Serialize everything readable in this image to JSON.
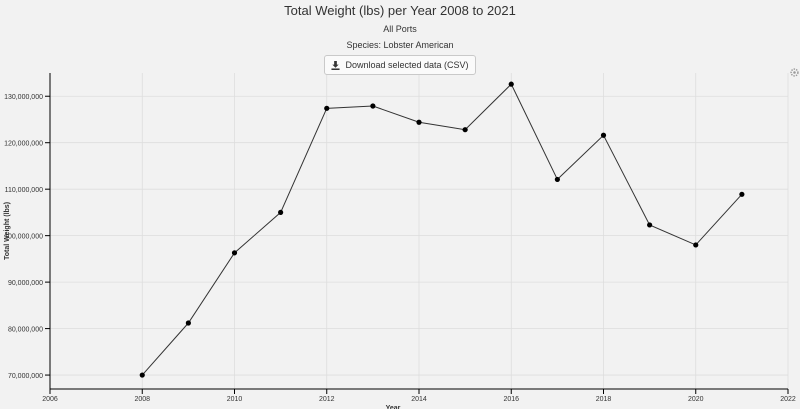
{
  "header": {
    "title": "Total Weight (lbs) per Year 2008 to 2021",
    "ports": "All Ports",
    "species": "Species: Lobster American",
    "download_label": "Download selected data (CSV)"
  },
  "icons": {
    "download": "download-icon",
    "corner": "gear-icon"
  },
  "colors": {
    "background": "#f2f2f2",
    "grid": "#dddddd",
    "line": "#333333",
    "point": "#000000"
  },
  "chart_data": {
    "type": "line",
    "title": "Total Weight (lbs) per Year 2008 to 2021",
    "xlabel": "Year",
    "ylabel": "Total Weight (lbs)",
    "xlim": [
      2006,
      2022
    ],
    "ylim": [
      67000000,
      135000000
    ],
    "xticks": [
      2006,
      2008,
      2010,
      2012,
      2014,
      2016,
      2018,
      2020,
      2022
    ],
    "yticks": [
      70000000,
      80000000,
      90000000,
      100000000,
      110000000,
      120000000,
      130000000
    ],
    "xtick_labels": [
      "2006",
      "2008",
      "2010",
      "2012",
      "2014",
      "2016",
      "2018",
      "2020",
      "2022"
    ],
    "ytick_labels": [
      "70,000,000",
      "80,000,000",
      "90,000,000",
      "100,000,000",
      "110,000,000",
      "120,000,000",
      "130,000,000"
    ],
    "grid": true,
    "series": [
      {
        "x": [
          2008,
          2009,
          2010,
          2011,
          2012,
          2013,
          2014,
          2015,
          2016,
          2017,
          2018,
          2019,
          2020,
          2021
        ],
        "values": [
          70000000,
          81200000,
          96300000,
          105000000,
          127400000,
          127900000,
          124400000,
          122800000,
          132600000,
          112100000,
          121600000,
          102300000,
          98000000,
          108900000
        ]
      }
    ]
  }
}
